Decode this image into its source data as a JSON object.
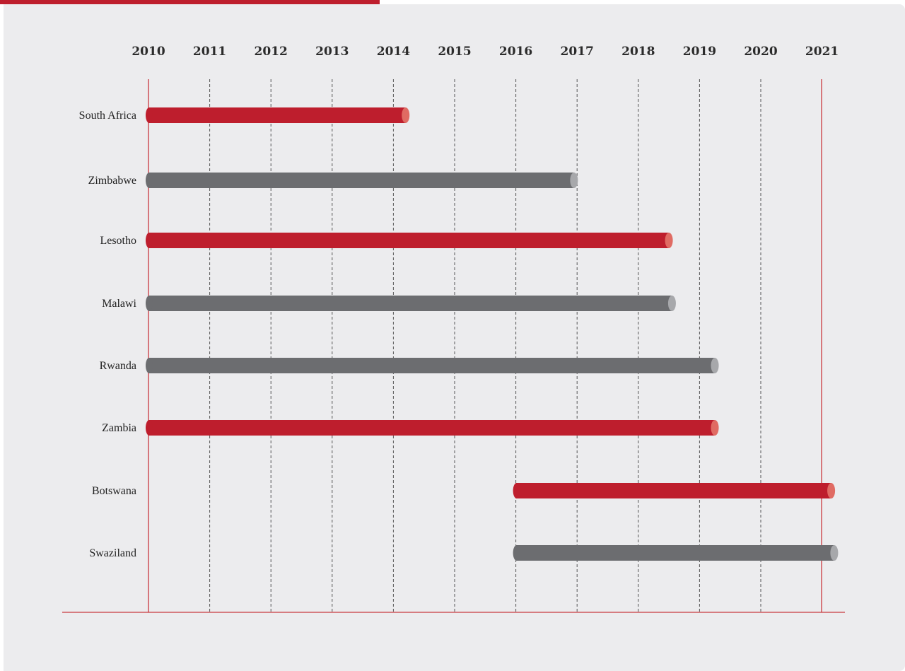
{
  "chart_data": {
    "type": "bar",
    "orientation": "horizontal-range",
    "x_ticks": [
      "2010",
      "2011",
      "2012",
      "2013",
      "2014",
      "2015",
      "2016",
      "2017",
      "2018",
      "2019",
      "2020",
      "2021"
    ],
    "xlim": [
      2010,
      2021.0
    ],
    "grid": true,
    "categories": [
      "South Africa",
      "Zimbabwe",
      "Lesotho",
      "Malawi",
      "Rwanda",
      "Zambia",
      "Botswana",
      "Swaziland"
    ],
    "ranges": [
      {
        "start": 2010,
        "end": 2014.2
      },
      {
        "start": 2010,
        "end": 2016.95
      },
      {
        "start": 2010,
        "end": 2018.5
      },
      {
        "start": 2010,
        "end": 2018.55
      },
      {
        "start": 2010,
        "end": 2019.25
      },
      {
        "start": 2010,
        "end": 2019.25
      },
      {
        "start": 2016,
        "end": 2021.15
      },
      {
        "start": 2016,
        "end": 2021.2
      }
    ],
    "colors": [
      "red",
      "gray",
      "red",
      "gray",
      "gray",
      "red",
      "red",
      "gray"
    ],
    "palette": {
      "red": "#be1e2d",
      "red_cap": "#e06b63",
      "gray": "#6c6d70",
      "gray_cap": "#a7a8ab",
      "axis": "#c9383e",
      "grid": "#555555"
    }
  }
}
